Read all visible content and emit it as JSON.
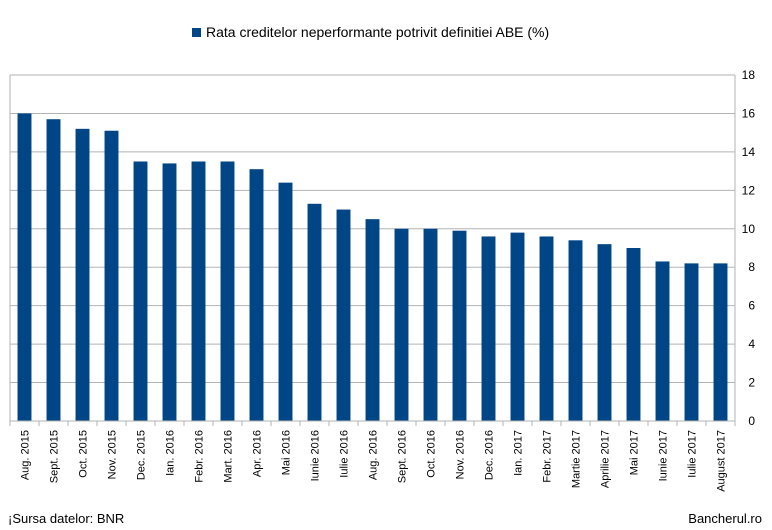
{
  "source_text": "¡Sursa datelor: BNR",
  "brand_text": "Bancherul.ro",
  "chart_data": {
    "type": "bar",
    "legend_position": "top",
    "grid": true,
    "bar_color": "#004586",
    "categories": [
      "Aug. 2015",
      "Sept. 2015",
      "Oct. 2015",
      "Nov. 2015",
      "Dec. 2015",
      "Ian. 2016",
      "Febr. 2016",
      "Mart. 2016",
      "Apr. 2016",
      "Mai 2016",
      "Iunie 2016",
      "Iulie 2016",
      "Aug. 2016",
      "Sept. 2016",
      "Oct. 2016",
      "Nov. 2016",
      "Dec. 2016",
      "Ian. 2017",
      "Febr. 2017",
      "Martie 2017",
      "Aprilie 2017",
      "Mai 2017",
      "Iunie 2017",
      "Iulie 2017",
      "August 2017"
    ],
    "series": [
      {
        "name": "Rata creditelor neperformante potrivit definitiei ABE (%)",
        "values": [
          16.0,
          15.7,
          15.2,
          15.1,
          13.5,
          13.4,
          13.5,
          13.5,
          13.1,
          12.4,
          11.3,
          11.0,
          10.5,
          10.0,
          10.0,
          9.9,
          9.6,
          9.8,
          9.6,
          9.4,
          9.2,
          9.0,
          8.3,
          8.2,
          8.2
        ]
      }
    ],
    "ylim": [
      0,
      18
    ],
    "yticks": [
      0,
      2,
      4,
      6,
      8,
      10,
      12,
      14,
      16,
      18
    ]
  }
}
